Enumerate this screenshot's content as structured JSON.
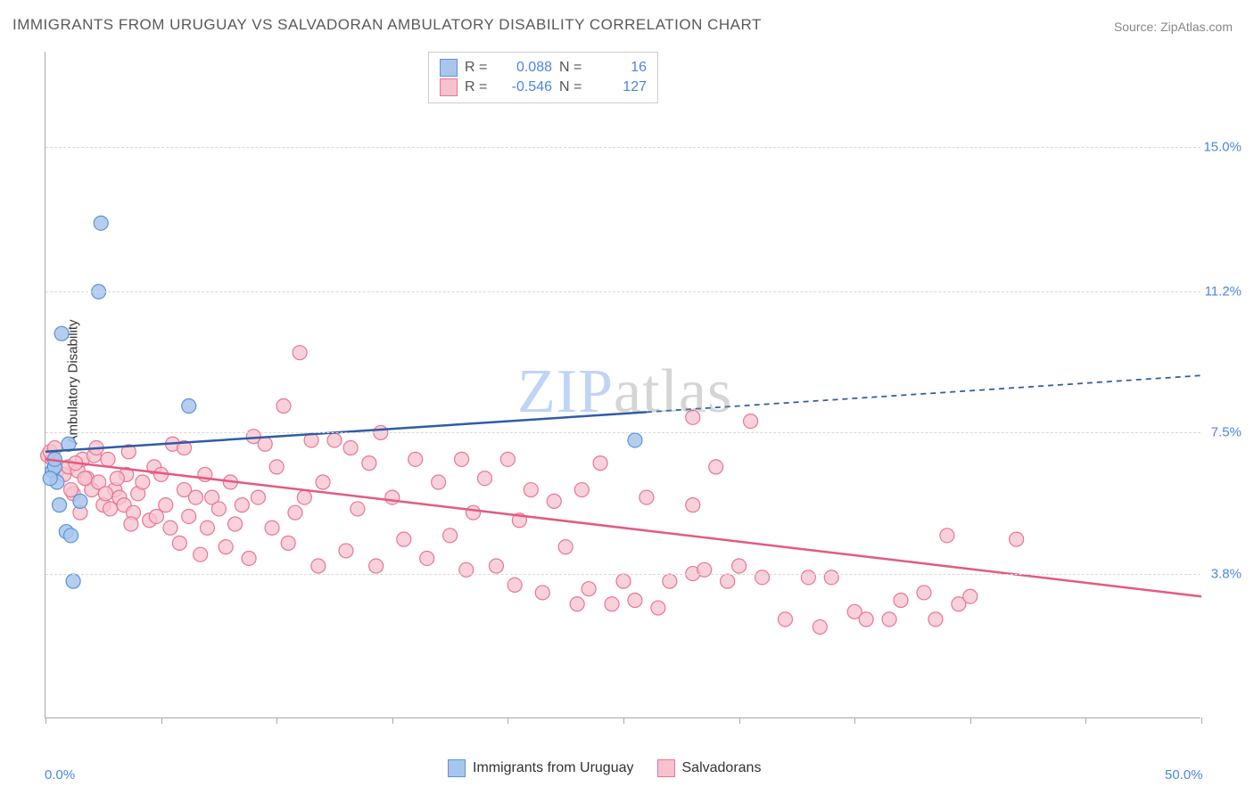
{
  "title": "IMMIGRANTS FROM URUGUAY VS SALVADORAN AMBULATORY DISABILITY CORRELATION CHART",
  "source_label": "Source:",
  "source_name": "ZipAtlas.com",
  "y_axis_label": "Ambulatory Disability",
  "watermark": "ZIPatlas",
  "chart": {
    "type": "scatter",
    "xlim": [
      0,
      50
    ],
    "ylim": [
      0,
      17.5
    ],
    "x_ticks_minor_step": 5,
    "x_ticks": [
      {
        "v": 0,
        "label": "0.0%"
      },
      {
        "v": 50,
        "label": "50.0%"
      }
    ],
    "y_gridlines": [
      {
        "v": 3.8,
        "label": "3.8%"
      },
      {
        "v": 7.5,
        "label": "7.5%"
      },
      {
        "v": 11.2,
        "label": "11.2%"
      },
      {
        "v": 15.0,
        "label": "15.0%"
      }
    ],
    "background_color": "#ffffff",
    "grid_color": "#d8d8d8",
    "axis_color": "#aaaaaa",
    "series": [
      {
        "name": "Immigrants from Uruguay",
        "color_fill": "#a8c6ed",
        "color_stroke": "#5c93d6",
        "marker_radius": 8,
        "marker_opacity": 0.85,
        "R": "0.088",
        "N": "16",
        "regression": {
          "x1": 0,
          "y1": 7.0,
          "x2": 50,
          "y2": 9.0,
          "color": "#2e5ca8",
          "width": 2.5,
          "solid_until_x": 26,
          "dash_after": true
        },
        "points": [
          {
            "x": 0.3,
            "y": 6.5
          },
          {
            "x": 0.4,
            "y": 6.6
          },
          {
            "x": 0.5,
            "y": 6.2
          },
          {
            "x": 0.7,
            "y": 10.1
          },
          {
            "x": 1.0,
            "y": 7.2
          },
          {
            "x": 0.9,
            "y": 4.9
          },
          {
            "x": 1.1,
            "y": 4.8
          },
          {
            "x": 1.2,
            "y": 3.6
          },
          {
            "x": 1.5,
            "y": 5.7
          },
          {
            "x": 2.4,
            "y": 13.0
          },
          {
            "x": 2.3,
            "y": 11.2
          },
          {
            "x": 6.2,
            "y": 8.2
          },
          {
            "x": 0.2,
            "y": 6.3
          },
          {
            "x": 0.6,
            "y": 5.6
          },
          {
            "x": 0.4,
            "y": 6.8
          },
          {
            "x": 25.5,
            "y": 7.3
          }
        ]
      },
      {
        "name": "Salvadorans",
        "color_fill": "#f7c1cd",
        "color_stroke": "#e77694",
        "marker_radius": 8,
        "marker_opacity": 0.75,
        "R": "-0.546",
        "N": "127",
        "regression": {
          "x1": 0,
          "y1": 6.8,
          "x2": 50,
          "y2": 3.2,
          "color": "#e35a80",
          "width": 2.5,
          "solid_until_x": 50,
          "dash_after": false
        },
        "points": [
          {
            "x": 0.1,
            "y": 6.9
          },
          {
            "x": 0.3,
            "y": 6.8
          },
          {
            "x": 0.5,
            "y": 6.5
          },
          {
            "x": 0.8,
            "y": 6.4
          },
          {
            "x": 1.0,
            "y": 6.6
          },
          {
            "x": 1.2,
            "y": 5.9
          },
          {
            "x": 1.4,
            "y": 6.5
          },
          {
            "x": 1.5,
            "y": 5.4
          },
          {
            "x": 1.6,
            "y": 6.8
          },
          {
            "x": 1.8,
            "y": 6.3
          },
          {
            "x": 2.0,
            "y": 6.0
          },
          {
            "x": 2.1,
            "y": 6.9
          },
          {
            "x": 2.3,
            "y": 6.2
          },
          {
            "x": 2.5,
            "y": 5.6
          },
          {
            "x": 2.7,
            "y": 6.8
          },
          {
            "x": 2.8,
            "y": 5.5
          },
          {
            "x": 3.0,
            "y": 6.0
          },
          {
            "x": 3.2,
            "y": 5.8
          },
          {
            "x": 3.4,
            "y": 5.6
          },
          {
            "x": 3.5,
            "y": 6.4
          },
          {
            "x": 3.6,
            "y": 7.0
          },
          {
            "x": 3.8,
            "y": 5.4
          },
          {
            "x": 4.0,
            "y": 5.9
          },
          {
            "x": 4.2,
            "y": 6.2
          },
          {
            "x": 4.5,
            "y": 5.2
          },
          {
            "x": 4.7,
            "y": 6.6
          },
          {
            "x": 4.8,
            "y": 5.3
          },
          {
            "x": 5.0,
            "y": 6.4
          },
          {
            "x": 5.2,
            "y": 5.6
          },
          {
            "x": 5.4,
            "y": 5.0
          },
          {
            "x": 5.5,
            "y": 7.2
          },
          {
            "x": 5.8,
            "y": 4.6
          },
          {
            "x": 6.0,
            "y": 6.0
          },
          {
            "x": 6.2,
            "y": 5.3
          },
          {
            "x": 6.5,
            "y": 5.8
          },
          {
            "x": 6.7,
            "y": 4.3
          },
          {
            "x": 6.9,
            "y": 6.4
          },
          {
            "x": 7.0,
            "y": 5.0
          },
          {
            "x": 7.2,
            "y": 5.8
          },
          {
            "x": 7.5,
            "y": 5.5
          },
          {
            "x": 7.8,
            "y": 4.5
          },
          {
            "x": 8.0,
            "y": 6.2
          },
          {
            "x": 8.2,
            "y": 5.1
          },
          {
            "x": 8.5,
            "y": 5.6
          },
          {
            "x": 8.8,
            "y": 4.2
          },
          {
            "x": 9.0,
            "y": 7.4
          },
          {
            "x": 9.2,
            "y": 5.8
          },
          {
            "x": 9.5,
            "y": 7.2
          },
          {
            "x": 9.8,
            "y": 5.0
          },
          {
            "x": 10.0,
            "y": 6.6
          },
          {
            "x": 10.3,
            "y": 8.2
          },
          {
            "x": 10.5,
            "y": 4.6
          },
          {
            "x": 10.8,
            "y": 5.4
          },
          {
            "x": 11.0,
            "y": 9.6
          },
          {
            "x": 11.2,
            "y": 5.8
          },
          {
            "x": 11.5,
            "y": 7.3
          },
          {
            "x": 11.8,
            "y": 4.0
          },
          {
            "x": 12.0,
            "y": 6.2
          },
          {
            "x": 12.5,
            "y": 7.3
          },
          {
            "x": 13.0,
            "y": 4.4
          },
          {
            "x": 13.2,
            "y": 7.1
          },
          {
            "x": 13.5,
            "y": 5.5
          },
          {
            "x": 14.0,
            "y": 6.7
          },
          {
            "x": 14.3,
            "y": 4.0
          },
          {
            "x": 14.5,
            "y": 7.5
          },
          {
            "x": 15.0,
            "y": 5.8
          },
          {
            "x": 15.5,
            "y": 4.7
          },
          {
            "x": 16.0,
            "y": 6.8
          },
          {
            "x": 16.5,
            "y": 4.2
          },
          {
            "x": 17.0,
            "y": 6.2
          },
          {
            "x": 17.5,
            "y": 4.8
          },
          {
            "x": 18.0,
            "y": 6.8
          },
          {
            "x": 18.2,
            "y": 3.9
          },
          {
            "x": 18.5,
            "y": 5.4
          },
          {
            "x": 19.0,
            "y": 6.3
          },
          {
            "x": 19.5,
            "y": 4.0
          },
          {
            "x": 20.0,
            "y": 6.8
          },
          {
            "x": 20.3,
            "y": 3.5
          },
          {
            "x": 20.5,
            "y": 5.2
          },
          {
            "x": 21.0,
            "y": 6.0
          },
          {
            "x": 21.5,
            "y": 3.3
          },
          {
            "x": 22.0,
            "y": 5.7
          },
          {
            "x": 22.5,
            "y": 4.5
          },
          {
            "x": 23.0,
            "y": 3.0
          },
          {
            "x": 23.2,
            "y": 6.0
          },
          {
            "x": 23.5,
            "y": 3.4
          },
          {
            "x": 24.0,
            "y": 6.7
          },
          {
            "x": 24.5,
            "y": 3.0
          },
          {
            "x": 25.0,
            "y": 3.6
          },
          {
            "x": 25.5,
            "y": 3.1
          },
          {
            "x": 26.0,
            "y": 5.8
          },
          {
            "x": 26.5,
            "y": 2.9
          },
          {
            "x": 27.0,
            "y": 3.6
          },
          {
            "x": 28.0,
            "y": 5.6
          },
          {
            "x": 28.0,
            "y": 7.9
          },
          {
            "x": 28.0,
            "y": 3.8
          },
          {
            "x": 28.5,
            "y": 3.9
          },
          {
            "x": 29.0,
            "y": 6.6
          },
          {
            "x": 29.5,
            "y": 3.6
          },
          {
            "x": 30.0,
            "y": 4.0
          },
          {
            "x": 30.5,
            "y": 7.8
          },
          {
            "x": 31.0,
            "y": 3.7
          },
          {
            "x": 32.0,
            "y": 2.6
          },
          {
            "x": 33.0,
            "y": 3.7
          },
          {
            "x": 33.5,
            "y": 2.4
          },
          {
            "x": 34.0,
            "y": 3.7
          },
          {
            "x": 35.0,
            "y": 2.8
          },
          {
            "x": 35.5,
            "y": 2.6
          },
          {
            "x": 36.5,
            "y": 2.6
          },
          {
            "x": 37.0,
            "y": 3.1
          },
          {
            "x": 38.0,
            "y": 3.3
          },
          {
            "x": 38.5,
            "y": 2.6
          },
          {
            "x": 39.0,
            "y": 4.8
          },
          {
            "x": 39.5,
            "y": 3.0
          },
          {
            "x": 40.0,
            "y": 3.2
          },
          {
            "x": 42.0,
            "y": 4.7
          },
          {
            "x": 0.2,
            "y": 7.0
          },
          {
            "x": 0.4,
            "y": 7.1
          },
          {
            "x": 1.1,
            "y": 6.0
          },
          {
            "x": 1.3,
            "y": 6.7
          },
          {
            "x": 1.7,
            "y": 6.3
          },
          {
            "x": 2.2,
            "y": 7.1
          },
          {
            "x": 2.6,
            "y": 5.9
          },
          {
            "x": 3.1,
            "y": 6.3
          },
          {
            "x": 3.7,
            "y": 5.1
          },
          {
            "x": 6.0,
            "y": 7.1
          }
        ]
      }
    ],
    "bottom_legend": [
      {
        "label": "Immigrants from Uruguay",
        "fill": "#a8c6ed",
        "stroke": "#5c93d6"
      },
      {
        "label": "Salvadorans",
        "fill": "#f7c1cd",
        "stroke": "#e77694"
      }
    ]
  }
}
